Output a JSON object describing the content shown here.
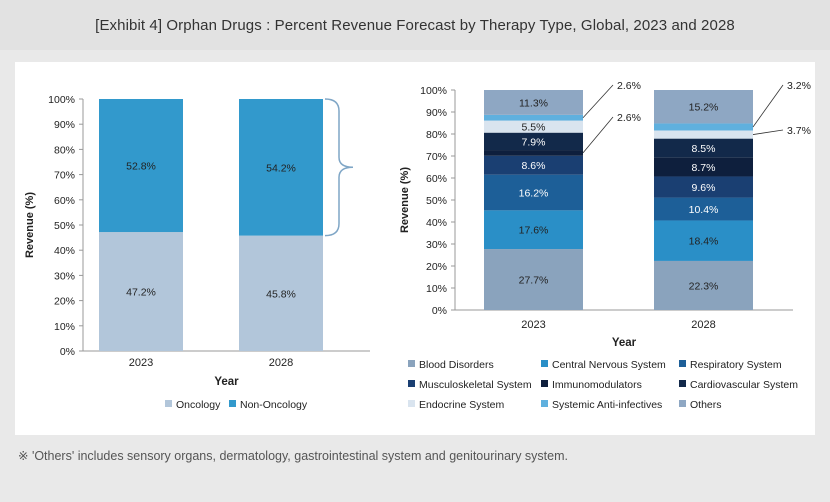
{
  "title": "[Exhibit 4] Orphan Drugs : Percent Revenue Forecast by Therapy Type, Global, 2023 and 2028",
  "footnote": "※ 'Others' includes sensory organs, dermatology, gastrointestinal system and genitourinary system.",
  "chart_data": [
    {
      "type": "bar",
      "stacked": true,
      "categories": [
        "2023",
        "2028"
      ],
      "series": [
        {
          "name": "Oncology",
          "values": [
            47.2,
            45.8
          ],
          "labels": [
            "47.2%",
            "45.8%"
          ],
          "color": "#b2c6da"
        },
        {
          "name": "Non-Oncology",
          "values": [
            52.8,
            54.2
          ],
          "labels": [
            "52.8%",
            "54.2%"
          ],
          "color": "#3299cc"
        }
      ],
      "xlabel": "Year",
      "ylabel": "Revenue (%)",
      "ylim": [
        0,
        100
      ],
      "yticks": [
        "0%",
        "10%",
        "20%",
        "30%",
        "40%",
        "50%",
        "60%",
        "70%",
        "80%",
        "90%",
        "100%"
      ],
      "legend_position": "bottom"
    },
    {
      "type": "bar",
      "stacked": true,
      "categories": [
        "2023",
        "2028"
      ],
      "series": [
        {
          "name": "Blood Disorders",
          "values": [
            27.7,
            22.3
          ],
          "labels": [
            "27.7%",
            "22.3%"
          ],
          "color": "#8aa3bd"
        },
        {
          "name": "Central Nervous System",
          "values": [
            17.6,
            18.4
          ],
          "labels": [
            "17.6%",
            "18.4%"
          ],
          "color": "#2a8fc7"
        },
        {
          "name": "Respiratory System",
          "values": [
            16.2,
            10.4
          ],
          "labels": [
            "16.2%",
            "10.4%"
          ],
          "color": "#1d5f98"
        },
        {
          "name": "Musculoskeletal System",
          "values": [
            8.6,
            9.6
          ],
          "labels": [
            "8.6%",
            "9.6%"
          ],
          "color": "#1a3f72"
        },
        {
          "name": "Immunomodulators",
          "values": [
            2.6,
            8.7
          ],
          "labels": [
            "2.6%",
            "8.7%"
          ],
          "color": "#0e1f3d"
        },
        {
          "name": "Cardiovascular System",
          "values": [
            7.9,
            8.5
          ],
          "labels": [
            "7.9%",
            "8.5%"
          ],
          "color": "#12294a"
        },
        {
          "name": "Endocrine System",
          "values": [
            5.5,
            3.7
          ],
          "labels": [
            "5.5%",
            "3.7%"
          ],
          "color": "#d9e4ef"
        },
        {
          "name": "Systemic Anti-infectives",
          "values": [
            2.6,
            3.2
          ],
          "labels": [
            "2.6%",
            "3.2%"
          ],
          "color": "#5fb0de"
        },
        {
          "name": "Others",
          "values": [
            11.3,
            15.2
          ],
          "labels": [
            "11.3%",
            "15.2%"
          ],
          "color": "#8ea7c3"
        }
      ],
      "xlabel": "Year",
      "ylabel": "Revenue (%)",
      "ylim": [
        0,
        100
      ],
      "yticks": [
        "0%",
        "10%",
        "20%",
        "30%",
        "40%",
        "50%",
        "60%",
        "70%",
        "80%",
        "90%",
        "100%"
      ],
      "legend_position": "bottom"
    }
  ]
}
